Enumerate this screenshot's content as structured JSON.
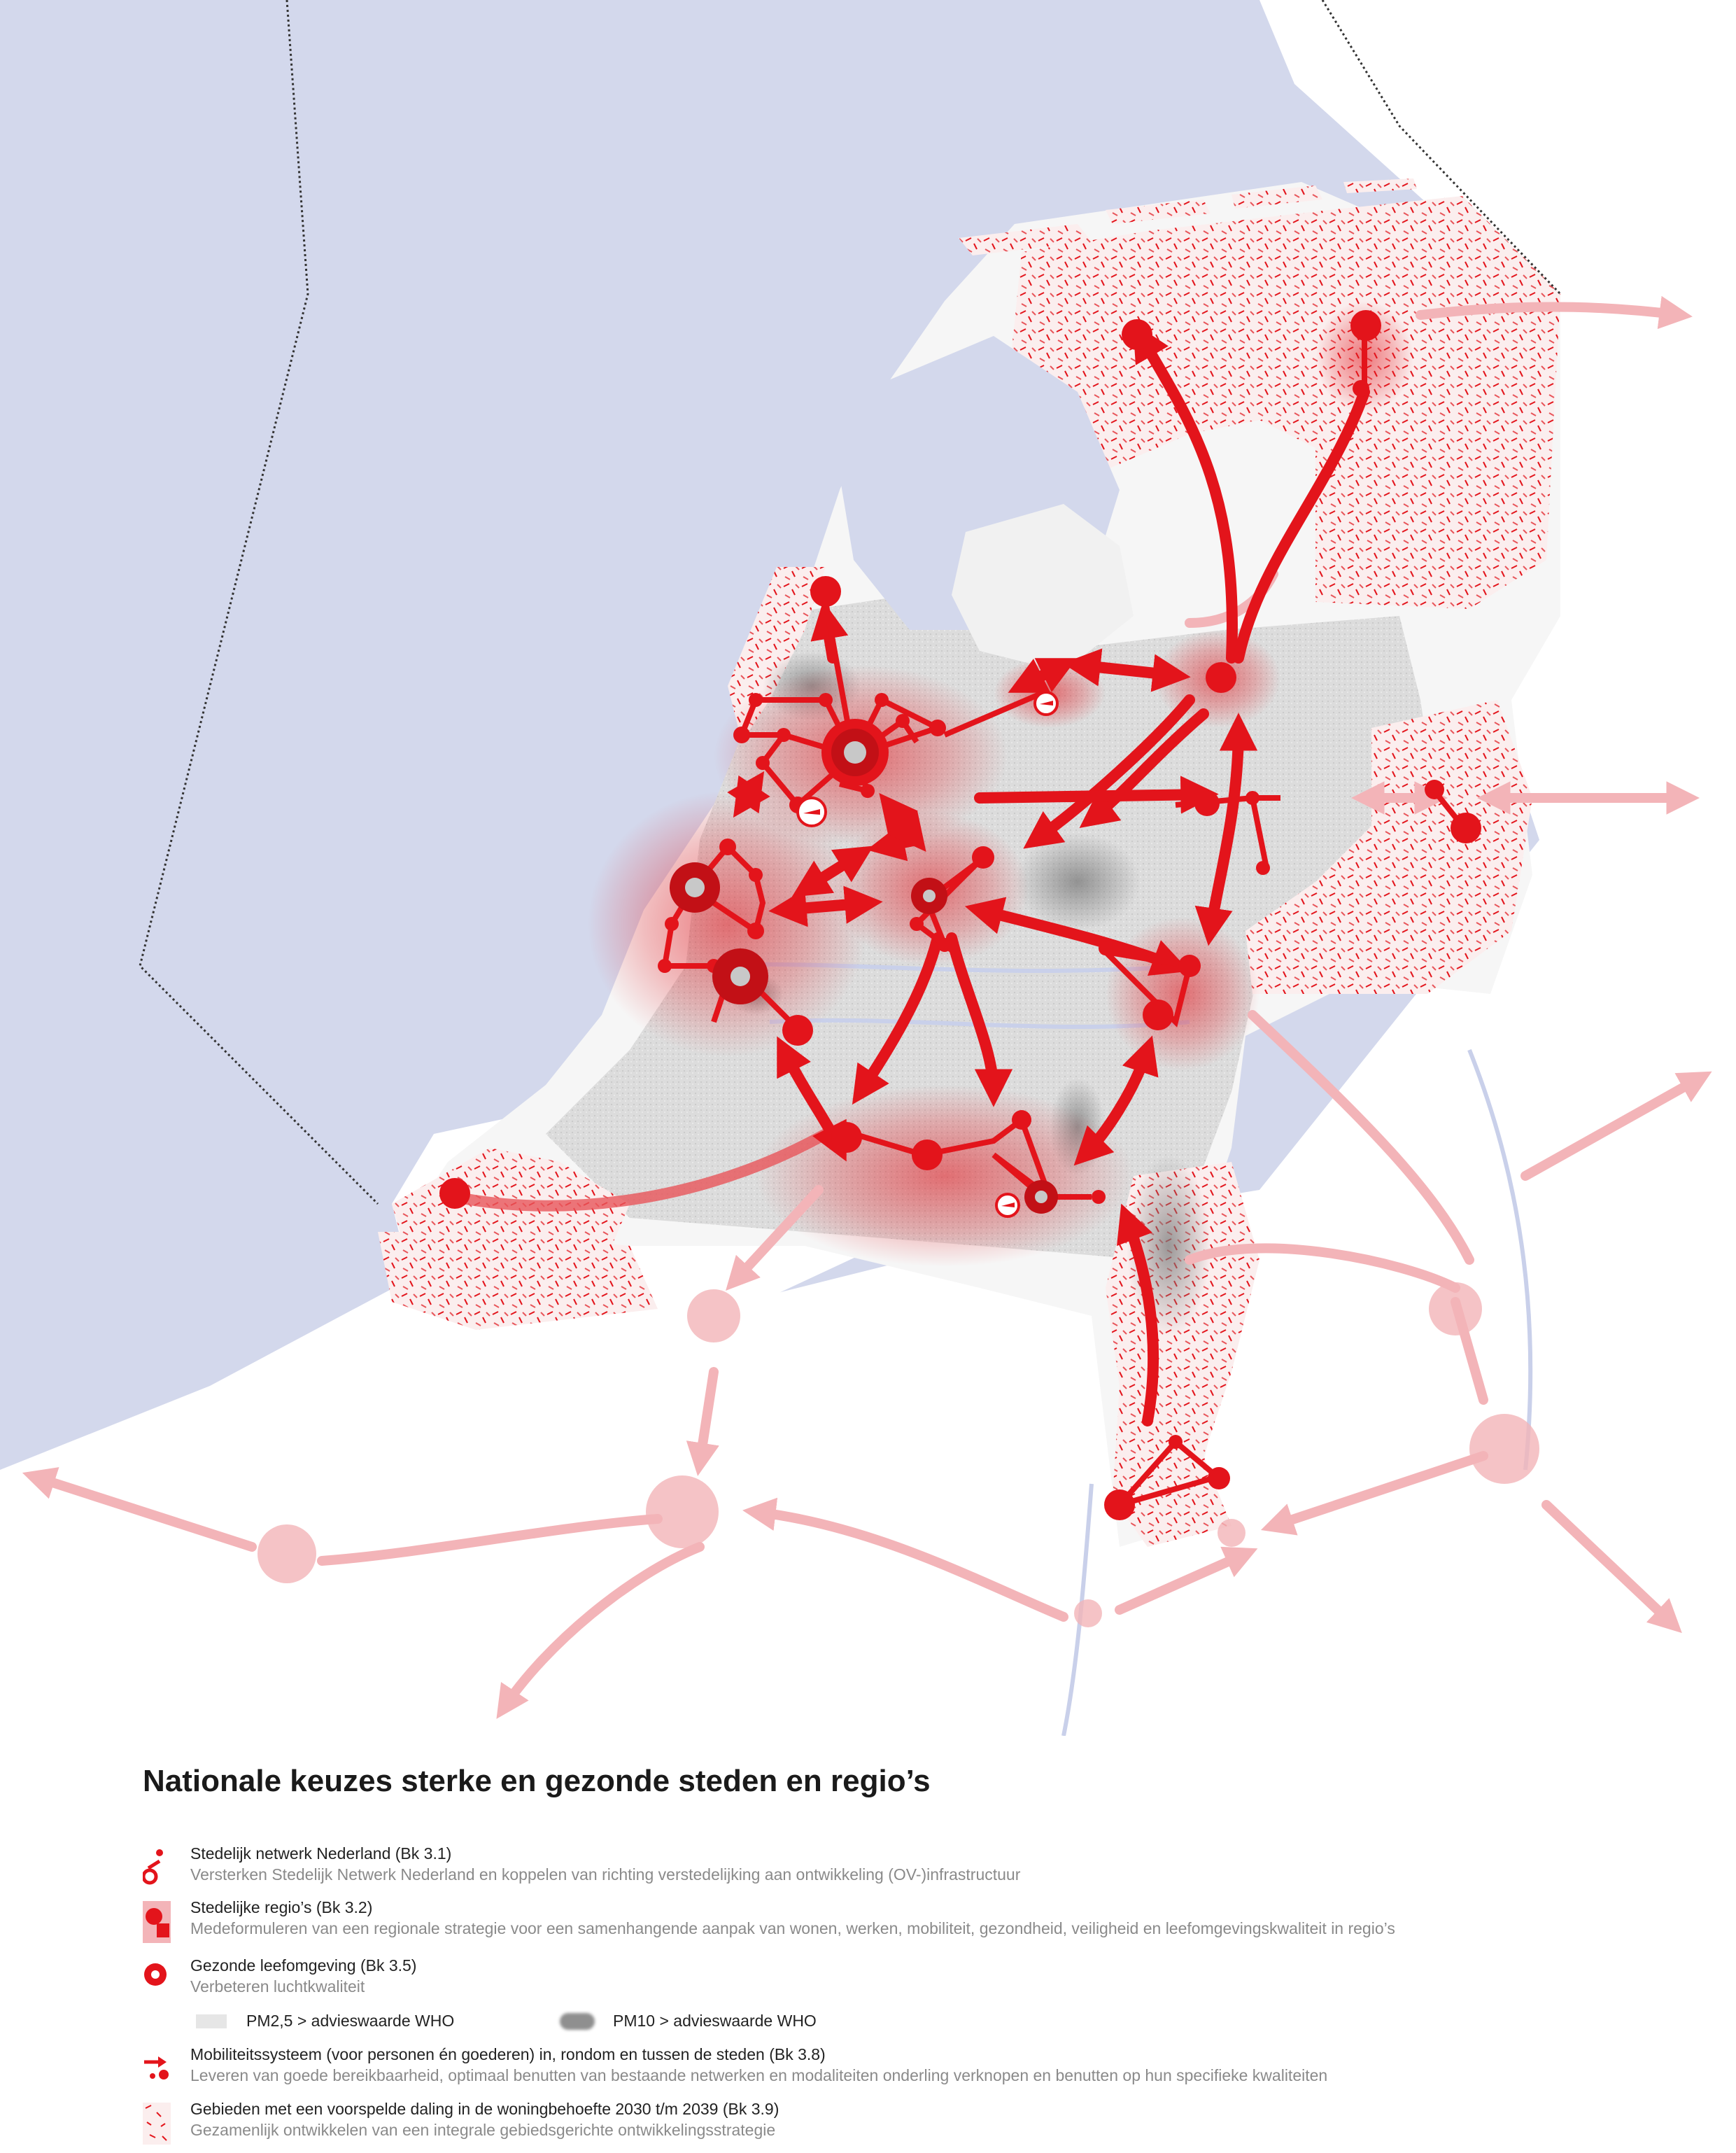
{
  "title": "Nationale keuzes sterke en gezonde steden en regio’s",
  "legend": [
    {
      "heading": "Stedelijk netwerk Nederland (Bk 3.1)",
      "description": "Versterken Stedelijk Netwerk Nederland en koppelen van richting verstedelijking aan ontwikkeling (OV-)infrastructuur",
      "icon": "urban-network-icon"
    },
    {
      "heading": "Stedelijke regio’s (Bk 3.2)",
      "description": "Medeformuleren van een regionale strategie voor een samenhangende aanpak van wonen, werken, mobiliteit, gezondheid, veiligheid en leefomgevingskwaliteit in regio’s",
      "icon": "urban-region-icon"
    },
    {
      "heading": "Gezonde leefomgeving (Bk 3.5)",
      "description": "Verbeteren luchtkwaliteit",
      "icon": "healthy-environment-icon"
    },
    {
      "heading": "Mobiliteitssysteem (voor personen én goederen) in, rondom en tussen de steden (Bk 3.8)",
      "description": "Leveren van goede bereikbaarheid, optimaal benutten van bestaande netwerken en modaliteiten onderling verknopen en benutten op hun specifieke kwaliteiten",
      "icon": "mobility-icon"
    },
    {
      "heading": "Gebieden met een voorspelde daling in de woningbehoefte 2030 t/m 2039 (Bk 3.9)",
      "description": "Gezamenlijk ontwikkelen van een integrale gebiedsgerichte ontwikkelingsstrategie",
      "icon": "hatched-area-icon"
    }
  ],
  "air_quality": {
    "pm25": "PM2,5 > advieswaarde WHO",
    "pm10": "PM10 > advieswaarde WHO"
  },
  "colors": {
    "sea": "#d3d8ec",
    "red": "#e3141b",
    "pink": "#f3b4b8",
    "grey": "#d8d8d8",
    "darkgrey": "#8f8f8f"
  }
}
